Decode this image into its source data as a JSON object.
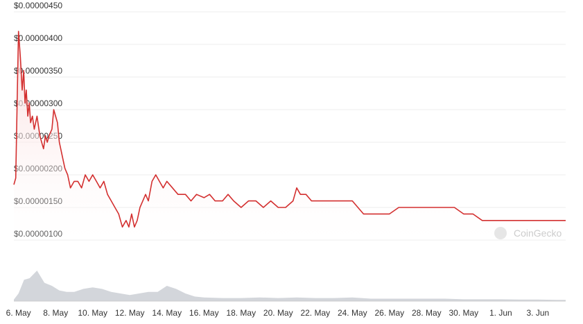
{
  "chart_data": {
    "type": "area",
    "title": "",
    "xlabel": "",
    "ylabel": "",
    "watermark": "CoinGecko",
    "colors": {
      "line": "#d32f2f",
      "fill_top": "#f9d5d5",
      "volume": "#d3d6db",
      "grid": "#eeeeee",
      "text": "#333333"
    },
    "y_ticks": [
      "$0.00000450",
      "$0.00000400",
      "$0.00000350",
      "$0.00000300",
      "$0.00000250",
      "$0.00000200",
      "$0.00000150",
      "$0.00000100"
    ],
    "y_tick_values": [
      4.5e-06,
      4e-06,
      3.5e-06,
      3e-06,
      2.5e-06,
      2e-06,
      1.5e-06,
      1e-06
    ],
    "ylim": [
      1e-06,
      4.5e-06
    ],
    "x_ticks": [
      "6. May",
      "8. May",
      "10. May",
      "12. May",
      "14. May",
      "16. May",
      "18. May",
      "20. May",
      "22. May",
      "24. May",
      "26. May",
      "28. May",
      "30. May",
      "1. Jun",
      "3. Jun"
    ],
    "x_tick_days": [
      6,
      8,
      10,
      12,
      14,
      16,
      18,
      20,
      22,
      24,
      26,
      28,
      30,
      32,
      34
    ],
    "xlim_days": [
      5.75,
      35.5
    ],
    "grid": true,
    "series": [
      {
        "x_days": [
          5.75,
          5.85,
          5.95,
          6.0,
          6.1,
          6.2,
          6.28,
          6.35,
          6.42,
          6.5,
          6.58,
          6.65,
          6.75,
          6.85,
          7.0,
          7.15,
          7.25,
          7.35,
          7.45,
          7.55,
          7.65,
          7.8,
          7.9,
          8.0,
          8.1,
          8.2,
          8.35,
          8.5,
          8.65,
          8.8,
          9.0,
          9.2,
          9.4,
          9.6,
          9.8,
          10.0,
          10.2,
          10.4,
          10.6,
          10.8,
          11.0,
          11.2,
          11.4,
          11.6,
          11.8,
          11.95,
          12.1,
          12.25,
          12.4,
          12.55,
          12.7,
          12.85,
          13.0,
          13.2,
          13.4,
          13.6,
          13.8,
          14.0,
          14.3,
          14.6,
          15.0,
          15.3,
          15.6,
          16.0,
          16.3,
          16.6,
          17.0,
          17.3,
          17.6,
          18.0,
          18.4,
          18.8,
          19.2,
          19.6,
          20.0,
          20.4,
          20.8,
          21.0,
          21.2,
          21.5,
          21.8,
          22.0,
          22.3,
          22.6,
          23.0,
          23.4,
          23.8,
          24.0,
          24.3,
          24.6,
          25.0,
          25.3,
          25.6,
          26.0,
          26.5,
          27.0,
          27.5,
          28.0,
          28.5,
          29.0,
          29.5,
          30.0,
          30.5,
          31.0,
          31.5,
          32.0,
          32.5,
          33.0,
          33.5,
          34.0,
          34.5,
          35.0,
          35.5
        ],
        "values": [
          1.85e-06,
          1.95e-06,
          3.5e-06,
          4.2e-06,
          3.8e-06,
          3.3e-06,
          3.6e-06,
          3.1e-06,
          3.3e-06,
          2.9e-06,
          3.1e-06,
          2.8e-06,
          2.9e-06,
          2.7e-06,
          2.9e-06,
          2.6e-06,
          2.5e-06,
          2.4e-06,
          2.6e-06,
          2.5e-06,
          2.6e-06,
          2.7e-06,
          3e-06,
          2.9e-06,
          2.8e-06,
          2.5e-06,
          2.3e-06,
          2.1e-06,
          2e-06,
          1.8e-06,
          1.9e-06,
          1.9e-06,
          1.8e-06,
          2e-06,
          1.9e-06,
          2e-06,
          1.9e-06,
          1.8e-06,
          1.9e-06,
          1.7e-06,
          1.6e-06,
          1.5e-06,
          1.4e-06,
          1.2e-06,
          1.3e-06,
          1.2e-06,
          1.4e-06,
          1.2e-06,
          1.3e-06,
          1.5e-06,
          1.6e-06,
          1.7e-06,
          1.6e-06,
          1.9e-06,
          2e-06,
          1.9e-06,
          1.8e-06,
          1.9e-06,
          1.8e-06,
          1.7e-06,
          1.7e-06,
          1.6e-06,
          1.7e-06,
          1.65e-06,
          1.7e-06,
          1.6e-06,
          1.6e-06,
          1.7e-06,
          1.6e-06,
          1.5e-06,
          1.6e-06,
          1.6e-06,
          1.5e-06,
          1.6e-06,
          1.5e-06,
          1.5e-06,
          1.6e-06,
          1.8e-06,
          1.7e-06,
          1.7e-06,
          1.6e-06,
          1.6e-06,
          1.6e-06,
          1.6e-06,
          1.6e-06,
          1.6e-06,
          1.6e-06,
          1.6e-06,
          1.5e-06,
          1.4e-06,
          1.4e-06,
          1.4e-06,
          1.4e-06,
          1.4e-06,
          1.5e-06,
          1.5e-06,
          1.5e-06,
          1.5e-06,
          1.5e-06,
          1.5e-06,
          1.5e-06,
          1.4e-06,
          1.4e-06,
          1.3e-06,
          1.3e-06,
          1.3e-06,
          1.3e-06,
          1.3e-06,
          1.3e-06,
          1.3e-06,
          1.3e-06,
          1.3e-06,
          1.3e-06
        ]
      }
    ],
    "volume": {
      "x_days": [
        5.75,
        6.0,
        6.3,
        6.6,
        7.0,
        7.4,
        7.8,
        8.2,
        8.6,
        9.0,
        9.5,
        10.0,
        10.5,
        11.0,
        11.5,
        12.0,
        12.5,
        13.0,
        13.5,
        14.0,
        14.5,
        15.0,
        15.5,
        16.0,
        17.0,
        18.0,
        19.0,
        20.0,
        21.0,
        22.0,
        23.0,
        24.0,
        25.0,
        26.0,
        27.0,
        28.0,
        29.0,
        30.0,
        31.0,
        32.0,
        33.0,
        34.0,
        35.0,
        35.5
      ],
      "values": [
        0.05,
        0.25,
        0.7,
        0.75,
        1.0,
        0.6,
        0.5,
        0.35,
        0.3,
        0.3,
        0.4,
        0.45,
        0.4,
        0.3,
        0.25,
        0.2,
        0.25,
        0.3,
        0.3,
        0.5,
        0.4,
        0.25,
        0.15,
        0.12,
        0.1,
        0.1,
        0.12,
        0.1,
        0.12,
        0.1,
        0.1,
        0.12,
        0.08,
        0.08,
        0.08,
        0.08,
        0.08,
        0.06,
        0.06,
        0.06,
        0.05,
        0.05,
        0.04,
        0.04
      ]
    }
  }
}
